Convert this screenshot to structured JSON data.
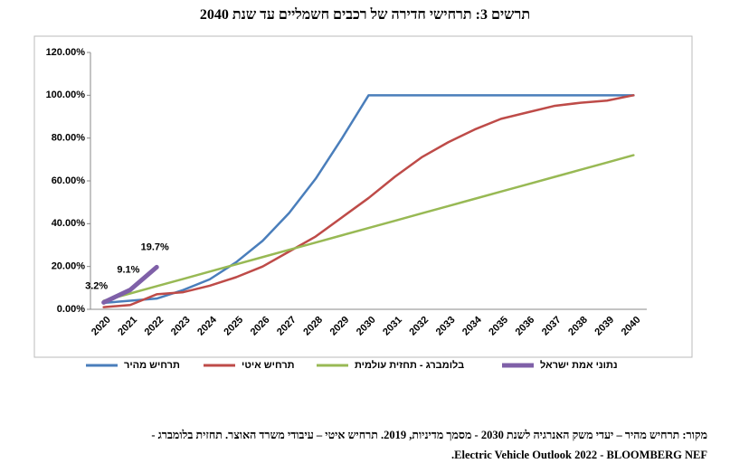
{
  "chart_data": {
    "type": "line",
    "title": "תרשים 3: תרחישי חדירה של רכבים חשמליים עד שנת 2040",
    "categories": [
      "2020",
      "2021",
      "2022",
      "2023",
      "2024",
      "2025",
      "2026",
      "2027",
      "2028",
      "2029",
      "2030",
      "2031",
      "2032",
      "2033",
      "2034",
      "2035",
      "2036",
      "2037",
      "2038",
      "2039",
      "2040"
    ],
    "series": [
      {
        "name": "תרחיש מהיר",
        "color": "#4a7ebb",
        "values": [
          3,
          4,
          5,
          9,
          14,
          22,
          32,
          45,
          61,
          80,
          100,
          100,
          100,
          100,
          100,
          100,
          100,
          100,
          100,
          100,
          100
        ]
      },
      {
        "name": "תרחיש איטי",
        "color": "#be4b48",
        "values": [
          1,
          2,
          7,
          8,
          11,
          15,
          20,
          27,
          34,
          43,
          52,
          62,
          71,
          78,
          84,
          89,
          92,
          95,
          96.5,
          97.5,
          100
        ]
      },
      {
        "name": "בלומברג - תחזית עולמית",
        "color": "#98b954",
        "values": [
          4,
          7.4,
          10.8,
          14.2,
          17.6,
          21,
          24.4,
          27.8,
          31.2,
          34.6,
          38,
          41.4,
          44.8,
          48.2,
          51.6,
          55,
          58.4,
          61.8,
          65.2,
          68.6,
          72
        ]
      },
      {
        "name": "נתוני אמת ישראל",
        "color": "#7f60a8",
        "values": [
          3.2,
          9.1,
          19.7,
          null,
          null,
          null,
          null,
          null,
          null,
          null,
          null,
          null,
          null,
          null,
          null,
          null,
          null,
          null,
          null,
          null,
          null
        ],
        "value_labels": [
          "3.2%",
          "9.1%",
          "19.7%",
          null,
          null,
          null,
          null,
          null,
          null,
          null,
          null,
          null,
          null,
          null,
          null,
          null,
          null,
          null,
          null,
          null,
          null
        ]
      }
    ],
    "ylim": [
      0,
      120
    ],
    "yticks": [
      {
        "value": 0,
        "label": "0.00%"
      },
      {
        "value": 20,
        "label": "20.00%"
      },
      {
        "value": 40,
        "label": "40.00%"
      },
      {
        "value": 60,
        "label": "60.00%"
      },
      {
        "value": 80,
        "label": "80.00%"
      },
      {
        "value": 100,
        "label": "100.00%"
      },
      {
        "value": 120,
        "label": "120.00%"
      }
    ],
    "grid": false,
    "legend": "bottom",
    "source": [
      "מקור: תרחיש מהיר – יעדי משק האנרגיה לשנת 2030 - מסמך מדיניות, 2019. תרחיש איטי – עיבודי משרד האוצר. תחזית בלומברג -",
      "Electric Vehicle Outlook 2022 - BLOOMBERG NEF."
    ]
  }
}
